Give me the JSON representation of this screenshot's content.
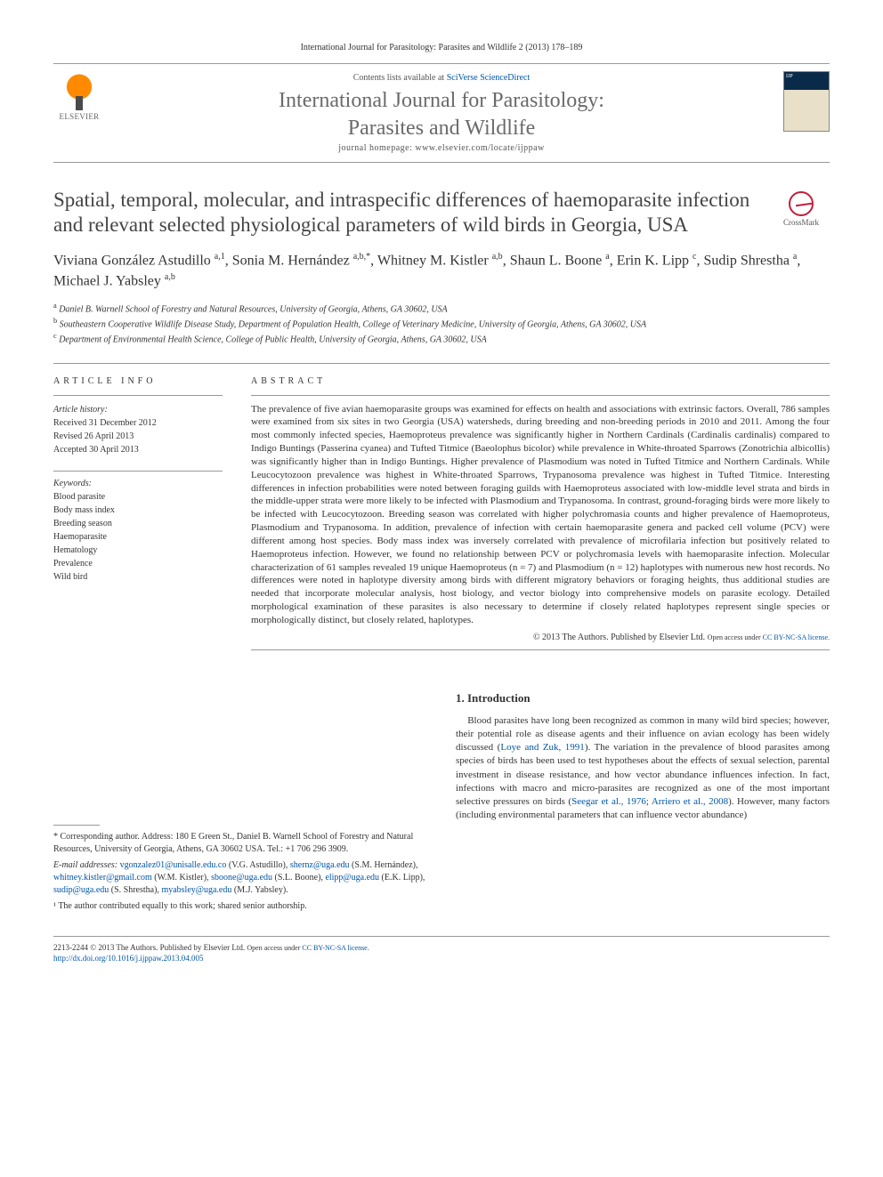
{
  "header": {
    "citation": "International Journal for Parasitology: Parasites and Wildlife 2 (2013) 178–189"
  },
  "contents_bar": {
    "contents_text": "Contents lists available at ",
    "contents_link": "SciVerse ScienceDirect",
    "journal_name_line1": "International Journal for Parasitology:",
    "journal_name_line2": "Parasites and Wildlife",
    "homepage_label": "journal homepage: ",
    "homepage_url": "www.elsevier.com/locate/ijppaw",
    "elsevier_label": "ELSEVIER",
    "cover_label": "IJP"
  },
  "crossmark": {
    "label": "CrossMark"
  },
  "title": "Spatial, temporal, molecular, and intraspecific differences of haemoparasite infection and relevant selected physiological parameters of wild birds in Georgia, USA",
  "authors_html": "Viviana González Astudillo <sup>a,1</sup>, Sonia M. Hernández <sup>a,b,*</sup>, Whitney M. Kistler <sup>a,b</sup>, Shaun L. Boone <sup>a</sup>, Erin K. Lipp <sup>c</sup>, Sudip Shrestha <sup>a</sup>, Michael J. Yabsley <sup>a,b</sup>",
  "affiliations": [
    {
      "sup": "a",
      "text": "Daniel B. Warnell School of Forestry and Natural Resources, University of Georgia, Athens, GA 30602, USA"
    },
    {
      "sup": "b",
      "text": "Southeastern Cooperative Wildlife Disease Study, Department of Population Health, College of Veterinary Medicine, University of Georgia, Athens, GA 30602, USA"
    },
    {
      "sup": "c",
      "text": "Department of Environmental Health Science, College of Public Health, University of Georgia, Athens, GA 30602, USA"
    }
  ],
  "info": {
    "section_label": "ARTICLE INFO",
    "history_label": "Article history:",
    "received": "Received 31 December 2012",
    "revised": "Revised 26 April 2013",
    "accepted": "Accepted 30 April 2013",
    "keywords_label": "Keywords:",
    "keywords": [
      "Blood parasite",
      "Body mass index",
      "Breeding season",
      "Haemoparasite",
      "Hematology",
      "Prevalence",
      "Wild bird"
    ]
  },
  "abstract": {
    "section_label": "ABSTRACT",
    "text": "The prevalence of five avian haemoparasite groups was examined for effects on health and associations with extrinsic factors. Overall, 786 samples were examined from six sites in two Georgia (USA) watersheds, during breeding and non-breeding periods in 2010 and 2011. Among the four most commonly infected species, Haemoproteus prevalence was significantly higher in Northern Cardinals (Cardinalis cardinalis) compared to Indigo Buntings (Passerina cyanea) and Tufted Titmice (Baeolophus bicolor) while prevalence in White-throated Sparrows (Zonotrichia albicollis) was significantly higher than in Indigo Buntings. Higher prevalence of Plasmodium was noted in Tufted Titmice and Northern Cardinals. While Leucocytozoon prevalence was highest in White-throated Sparrows, Trypanosoma prevalence was highest in Tufted Titmice. Interesting differences in infection probabilities were noted between foraging guilds with Haemoproteus associated with low-middle level strata and birds in the middle-upper strata were more likely to be infected with Plasmodium and Trypanosoma. In contrast, ground-foraging birds were more likely to be infected with Leucocytozoon. Breeding season was correlated with higher polychromasia counts and higher prevalence of Haemoproteus, Plasmodium and Trypanosoma. In addition, prevalence of infection with certain haemoparasite genera and packed cell volume (PCV) were different among host species. Body mass index was inversely correlated with prevalence of microfilaria infection but positively related to Haemoproteus infection. However, we found no relationship between PCV or polychromasia levels with haemoparasite infection. Molecular characterization of 61 samples revealed 19 unique Haemoproteus (n = 7) and Plasmodium (n = 12) haplotypes with numerous new host records. No differences were noted in haplotype diversity among birds with different migratory behaviors or foraging heights, thus additional studies are needed that incorporate molecular analysis, host biology, and vector biology into comprehensive models on parasite ecology. Detailed morphological examination of these parasites is also necessary to determine if closely related haplotypes represent single species or morphologically distinct, but closely related, haplotypes.",
    "copyright": "© 2013 The Authors. Published by Elsevier Ltd. ",
    "license_prefix": "Open access under ",
    "license_link": "CC BY-NC-SA license."
  },
  "corresponding": {
    "star": "* Corresponding author. Address: 180 E Green St., Daniel B. Warnell School of Forestry and Natural Resources, University of Georgia, Athens, GA 30602 USA. Tel.: +1 706 296 3909.",
    "emails_label": "E-mail addresses: ",
    "emails": "vgonzalez01@unisalle.edu.co (V.G. Astudillo), shernz@uga.edu (S.M. Hernández), whitney.kistler@gmail.com (W.M. Kistler), sboone@uga.edu (S.L. Boone), elipp@uga.edu (E.K. Lipp), sudip@uga.edu (S. Shrestha), myabsley@uga.edu (M.J. Yabsley).",
    "note1": "¹ The author contributed equally to this work; shared senior authorship."
  },
  "introduction": {
    "heading": "1. Introduction",
    "para": "Blood parasites have long been recognized as common in many wild bird species; however, their potential role as disease agents and their influence on avian ecology has been widely discussed (Loye and Zuk, 1991). The variation in the prevalence of blood parasites among species of birds has been used to test hypotheses about the effects of sexual selection, parental investment in disease resistance, and how vector abundance influences infection. In fact, infections with macro and micro-parasites are recognized as one of the most important selective pressures on birds (Seegar et al., 1976; Arriero et al., 2008). However, many factors (including environmental parameters that can influence vector abundance)"
  },
  "footer": {
    "issn_line": "2213-2244 © 2013 The Authors. Published by Elsevier Ltd. ",
    "license_prefix": "Open access under ",
    "license_link": "CC BY-NC-SA license.",
    "doi": "http://dx.doi.org/10.1016/j.ijppaw.2013.04.005"
  },
  "colors": {
    "link": "#0055a5",
    "text": "#333333",
    "rule": "#999999",
    "elsevier_orange": "#ff8a00",
    "crossmark_red": "#c41e3a"
  }
}
